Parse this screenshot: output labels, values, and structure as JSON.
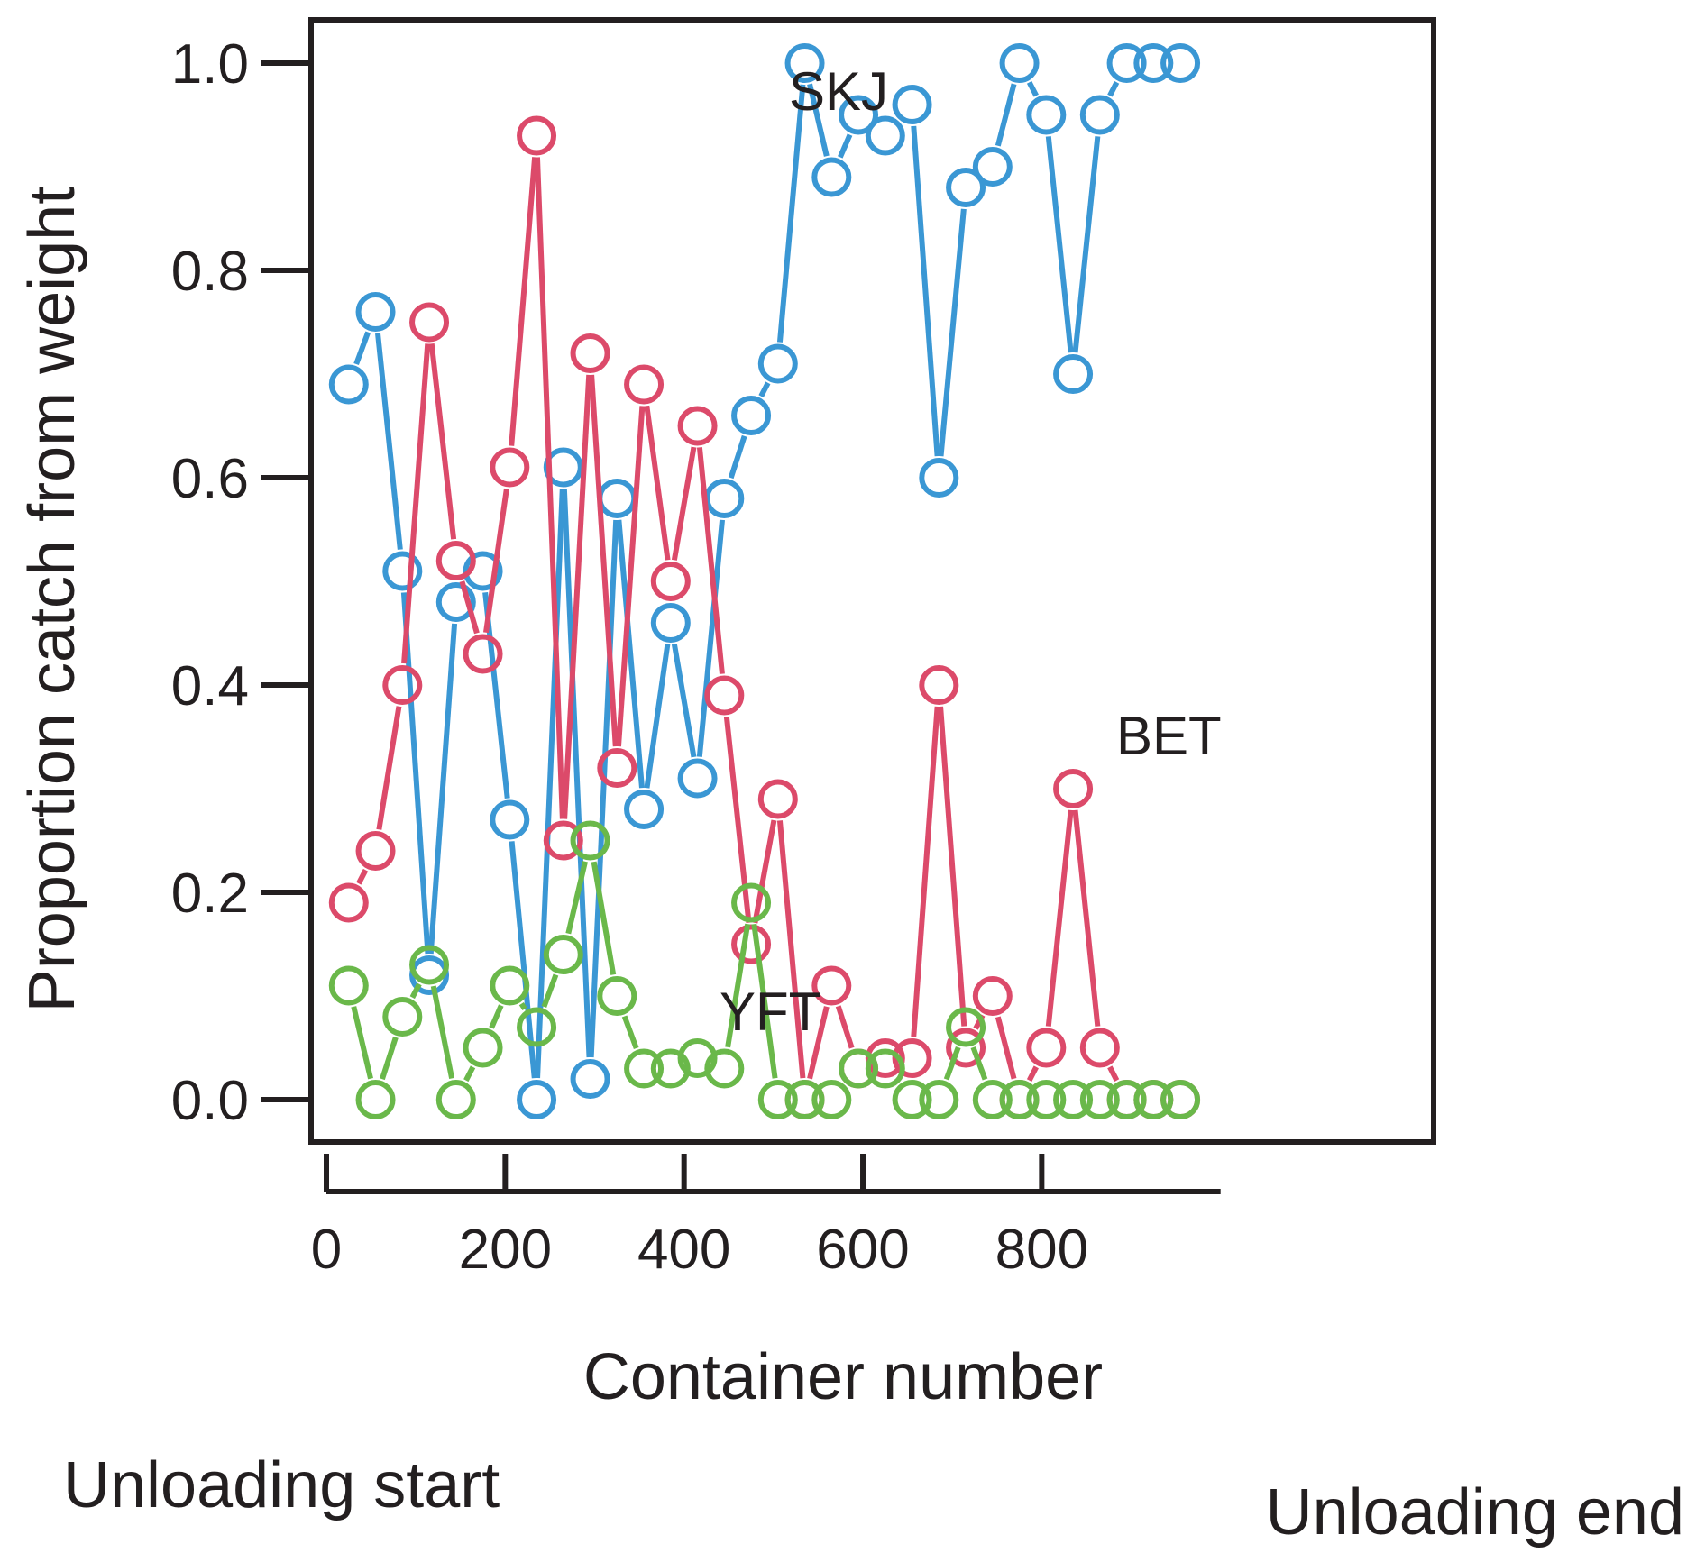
{
  "chart_data": {
    "type": "line",
    "xlabel": "Container number",
    "ylabel": "Proportion catch from weight",
    "xlim": [
      0,
      1000
    ],
    "ylim": [
      0,
      1.0
    ],
    "xticks": [
      0,
      200,
      400,
      600,
      800
    ],
    "xtick_labels": [
      "0",
      "200",
      "400",
      "600",
      "800"
    ],
    "yticks": [
      0,
      0.2,
      0.4,
      0.6,
      0.8,
      1.0
    ],
    "ytick_labels": [
      "0.0",
      "0.2",
      "0.4",
      "0.6",
      "0.8",
      "1.0"
    ],
    "grid": false,
    "x": [
      25,
      55,
      85,
      115,
      145,
      175,
      205,
      235,
      265,
      295,
      325,
      355,
      385,
      415,
      445,
      475,
      505,
      535,
      565,
      595,
      625,
      655,
      685,
      715,
      745,
      775,
      805,
      835,
      865,
      895,
      925,
      955
    ],
    "series": [
      {
        "name": "SKJ",
        "color": "#3a97d4",
        "values": [
          0.69,
          0.76,
          0.51,
          0.12,
          0.48,
          0.51,
          0.27,
          0.0,
          0.61,
          0.02,
          0.58,
          0.28,
          0.46,
          0.31,
          0.58,
          0.66,
          0.71,
          1.0,
          0.89,
          0.95,
          0.93,
          0.96,
          0.6,
          0.88,
          0.9,
          1.0,
          0.95,
          0.7,
          0.95,
          1.0,
          1.0,
          1.0
        ]
      },
      {
        "name": "BET",
        "color": "#dc4a6a",
        "values": [
          0.19,
          0.24,
          0.4,
          0.75,
          0.52,
          0.43,
          0.61,
          0.93,
          0.25,
          0.72,
          0.32,
          0.69,
          0.5,
          0.65,
          0.39,
          0.15,
          0.29,
          0.0,
          0.11,
          0.03,
          0.04,
          0.04,
          0.4,
          0.05,
          0.1,
          0.0,
          0.05,
          0.3,
          0.05,
          0.0,
          0.0,
          0.0
        ]
      },
      {
        "name": "YFT",
        "color": "#6ab84a",
        "values": [
          0.11,
          0.0,
          0.08,
          0.13,
          0.0,
          0.05,
          0.11,
          0.07,
          0.14,
          0.25,
          0.1,
          0.03,
          0.03,
          0.04,
          0.03,
          0.19,
          0.0,
          0.0,
          0.0,
          0.03,
          0.03,
          0.0,
          0.0,
          0.07,
          0.0,
          0.0,
          0.0,
          0.0,
          0.0,
          0.0,
          0.0,
          0.0
        ]
      }
    ],
    "annotations": [
      "SKJ",
      "BET",
      "YFT"
    ],
    "footer_left": "Unloading start",
    "footer_right": "Unloading end"
  }
}
